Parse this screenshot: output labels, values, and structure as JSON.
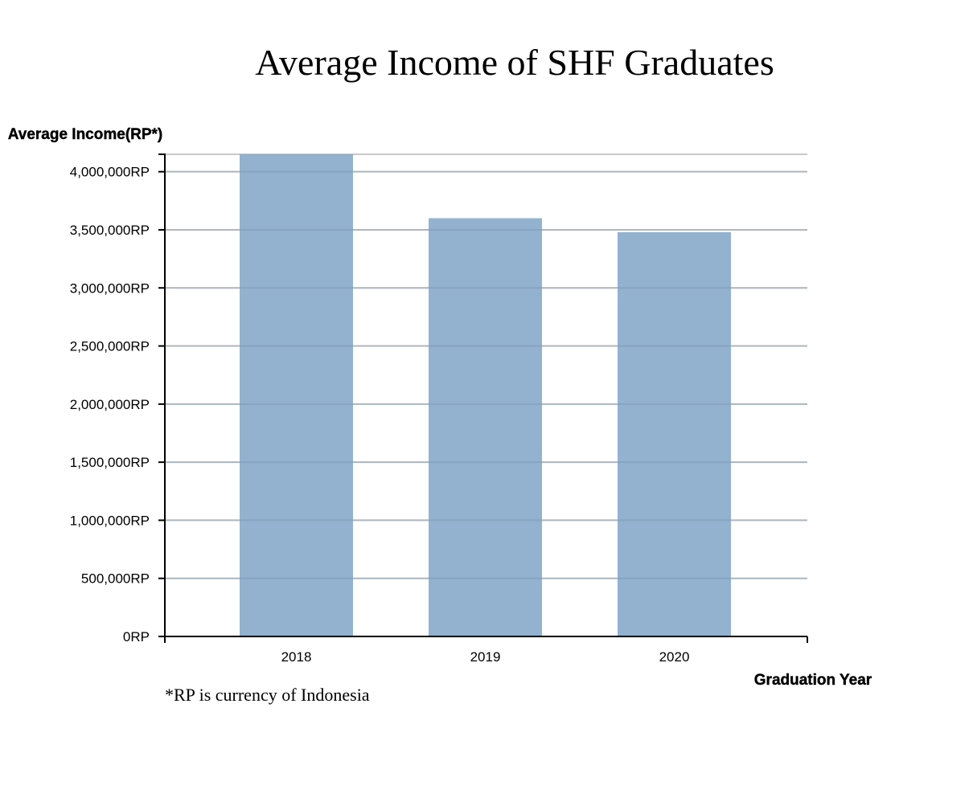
{
  "chart_data": {
    "type": "bar",
    "title": "Average Income of SHF Graduates",
    "ylabel": "Average Income(RP*)",
    "xlabel": "Graduation Year",
    "footnote": "*RP is currency of Indonesia",
    "categories": [
      "2018",
      "2019",
      "2020"
    ],
    "series": [
      {
        "values": [
          4150000,
          3600000,
          3480000
        ]
      }
    ],
    "ylim": [
      0,
      4150000
    ],
    "yticks": [
      0,
      500000,
      1000000,
      1500000,
      2000000,
      2500000,
      3000000,
      3500000,
      4000000
    ],
    "ytick_labels": [
      "0RP",
      "500,000RP",
      "1,000,000RP",
      "1,500,000RP",
      "2,000,000RP",
      "2,500,000RP",
      "3,000,000RP",
      "3,500,000RP",
      "4,000,000RP"
    ],
    "grid": true,
    "legend": "none",
    "colors": {
      "bar": "#86aacb",
      "grid": "#c8c8c8",
      "axis": "#000000"
    }
  }
}
